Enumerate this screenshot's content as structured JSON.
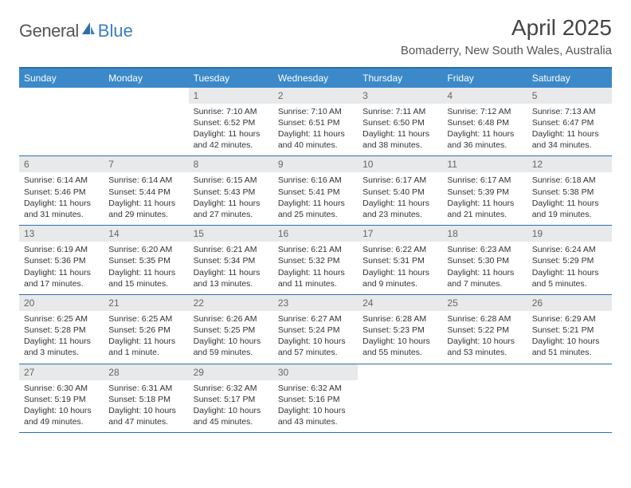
{
  "brand": {
    "part1": "General",
    "part2": "Blue"
  },
  "title": "April 2025",
  "location": "Bomaderry, New South Wales, Australia",
  "colors": {
    "header_bg": "#3b89c9",
    "header_text": "#ffffff",
    "border": "#2f6fa8",
    "daynum_bg": "#e8e9ea",
    "daynum_text": "#666666",
    "body_text": "#333333",
    "logo_gray": "#555555",
    "logo_blue": "#3b7fc4"
  },
  "weekdays": [
    "Sunday",
    "Monday",
    "Tuesday",
    "Wednesday",
    "Thursday",
    "Friday",
    "Saturday"
  ],
  "weeks": [
    [
      null,
      null,
      {
        "n": 1,
        "sr": "7:10 AM",
        "ss": "6:52 PM",
        "dl": "11 hours and 42 minutes."
      },
      {
        "n": 2,
        "sr": "7:10 AM",
        "ss": "6:51 PM",
        "dl": "11 hours and 40 minutes."
      },
      {
        "n": 3,
        "sr": "7:11 AM",
        "ss": "6:50 PM",
        "dl": "11 hours and 38 minutes."
      },
      {
        "n": 4,
        "sr": "7:12 AM",
        "ss": "6:48 PM",
        "dl": "11 hours and 36 minutes."
      },
      {
        "n": 5,
        "sr": "7:13 AM",
        "ss": "6:47 PM",
        "dl": "11 hours and 34 minutes."
      }
    ],
    [
      {
        "n": 6,
        "sr": "6:14 AM",
        "ss": "5:46 PM",
        "dl": "11 hours and 31 minutes."
      },
      {
        "n": 7,
        "sr": "6:14 AM",
        "ss": "5:44 PM",
        "dl": "11 hours and 29 minutes."
      },
      {
        "n": 8,
        "sr": "6:15 AM",
        "ss": "5:43 PM",
        "dl": "11 hours and 27 minutes."
      },
      {
        "n": 9,
        "sr": "6:16 AM",
        "ss": "5:41 PM",
        "dl": "11 hours and 25 minutes."
      },
      {
        "n": 10,
        "sr": "6:17 AM",
        "ss": "5:40 PM",
        "dl": "11 hours and 23 minutes."
      },
      {
        "n": 11,
        "sr": "6:17 AM",
        "ss": "5:39 PM",
        "dl": "11 hours and 21 minutes."
      },
      {
        "n": 12,
        "sr": "6:18 AM",
        "ss": "5:38 PM",
        "dl": "11 hours and 19 minutes."
      }
    ],
    [
      {
        "n": 13,
        "sr": "6:19 AM",
        "ss": "5:36 PM",
        "dl": "11 hours and 17 minutes."
      },
      {
        "n": 14,
        "sr": "6:20 AM",
        "ss": "5:35 PM",
        "dl": "11 hours and 15 minutes."
      },
      {
        "n": 15,
        "sr": "6:21 AM",
        "ss": "5:34 PM",
        "dl": "11 hours and 13 minutes."
      },
      {
        "n": 16,
        "sr": "6:21 AM",
        "ss": "5:32 PM",
        "dl": "11 hours and 11 minutes."
      },
      {
        "n": 17,
        "sr": "6:22 AM",
        "ss": "5:31 PM",
        "dl": "11 hours and 9 minutes."
      },
      {
        "n": 18,
        "sr": "6:23 AM",
        "ss": "5:30 PM",
        "dl": "11 hours and 7 minutes."
      },
      {
        "n": 19,
        "sr": "6:24 AM",
        "ss": "5:29 PM",
        "dl": "11 hours and 5 minutes."
      }
    ],
    [
      {
        "n": 20,
        "sr": "6:25 AM",
        "ss": "5:28 PM",
        "dl": "11 hours and 3 minutes."
      },
      {
        "n": 21,
        "sr": "6:25 AM",
        "ss": "5:26 PM",
        "dl": "11 hours and 1 minute."
      },
      {
        "n": 22,
        "sr": "6:26 AM",
        "ss": "5:25 PM",
        "dl": "10 hours and 59 minutes."
      },
      {
        "n": 23,
        "sr": "6:27 AM",
        "ss": "5:24 PM",
        "dl": "10 hours and 57 minutes."
      },
      {
        "n": 24,
        "sr": "6:28 AM",
        "ss": "5:23 PM",
        "dl": "10 hours and 55 minutes."
      },
      {
        "n": 25,
        "sr": "6:28 AM",
        "ss": "5:22 PM",
        "dl": "10 hours and 53 minutes."
      },
      {
        "n": 26,
        "sr": "6:29 AM",
        "ss": "5:21 PM",
        "dl": "10 hours and 51 minutes."
      }
    ],
    [
      {
        "n": 27,
        "sr": "6:30 AM",
        "ss": "5:19 PM",
        "dl": "10 hours and 49 minutes."
      },
      {
        "n": 28,
        "sr": "6:31 AM",
        "ss": "5:18 PM",
        "dl": "10 hours and 47 minutes."
      },
      {
        "n": 29,
        "sr": "6:32 AM",
        "ss": "5:17 PM",
        "dl": "10 hours and 45 minutes."
      },
      {
        "n": 30,
        "sr": "6:32 AM",
        "ss": "5:16 PM",
        "dl": "10 hours and 43 minutes."
      },
      null,
      null,
      null
    ]
  ],
  "labels": {
    "sunrise": "Sunrise:",
    "sunset": "Sunset:",
    "daylight": "Daylight:"
  }
}
